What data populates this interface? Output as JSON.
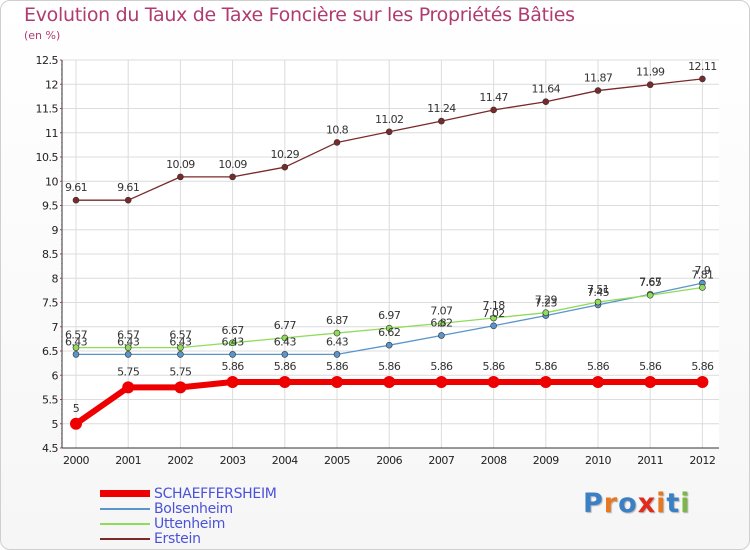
{
  "title": "Evolution du Taux de Taxe Foncière sur les Propriétés Bâties",
  "unit_label": "(en %)",
  "logo": {
    "letters": [
      "P",
      "r",
      "o",
      "x",
      "i",
      "t",
      "i"
    ],
    "colors": [
      "#3b7fc4",
      "#e87722",
      "#3b7fc4",
      "#e02b1c",
      "#e87722",
      "#3b7fc4",
      "#7ab648"
    ]
  },
  "chart_data": {
    "type": "line",
    "title": "Evolution du Taux de Taxe Foncière sur les Propriétés Bâties",
    "ylabel": "(en %)",
    "x": [
      "2000",
      "2001",
      "2002",
      "2003",
      "2004",
      "2005",
      "2006",
      "2007",
      "2008",
      "2009",
      "2010",
      "2011",
      "2012"
    ],
    "ylim": [
      4.5,
      12.5
    ],
    "yticks": [
      "4.5",
      "5",
      "5.5",
      "6",
      "6.5",
      "7",
      "7.5",
      "8",
      "8.5",
      "9",
      "9.5",
      "10",
      "10.5",
      "11",
      "11.5",
      "12",
      "12.5"
    ],
    "grid": true,
    "legend_position": "bottom-left",
    "series": [
      {
        "name": "SCHAEFFERSHEIM",
        "color": "#ee0000",
        "label_color": "#4a52d8",
        "values": [
          5,
          5.75,
          5.75,
          5.86,
          5.86,
          5.86,
          5.86,
          5.86,
          5.86,
          5.86,
          5.86,
          5.86,
          5.86
        ],
        "labels": [
          "5",
          "5.75",
          "5.75",
          "5.86",
          "5.86",
          "5.86",
          "5.86",
          "5.86",
          "5.86",
          "5.86",
          "5.86",
          "5.86",
          "5.86"
        ]
      },
      {
        "name": "Bolsenheim",
        "color": "#5a95cc",
        "label_color": "#4a52d8",
        "values": [
          6.43,
          6.43,
          6.43,
          6.43,
          6.43,
          6.43,
          6.62,
          6.82,
          7.02,
          7.23,
          7.45,
          7.67,
          7.9
        ],
        "labels": [
          "6.43",
          "6.43",
          "6.43",
          "6.43",
          "6.43",
          "6.43",
          "6.62",
          "6.82",
          "7.02",
          "7.23",
          "7.45",
          "7.67",
          "7.9"
        ]
      },
      {
        "name": "Uttenheim",
        "color": "#8fdc5a",
        "label_color": "#4a52d8",
        "values": [
          6.57,
          6.57,
          6.57,
          6.67,
          6.77,
          6.87,
          6.97,
          7.07,
          7.18,
          7.29,
          7.51,
          7.65,
          7.81
        ],
        "labels": [
          "6.57",
          "6.57",
          "6.57",
          "6.67",
          "6.77",
          "6.87",
          "6.97",
          "7.07",
          "7.18",
          "7.29",
          "7.51",
          "7.65",
          "7.81"
        ]
      },
      {
        "name": "Erstein",
        "color": "#7a2a2a",
        "label_color": "#4a52d8",
        "values": [
          9.61,
          9.61,
          10.09,
          10.09,
          10.29,
          10.8,
          11.02,
          11.24,
          11.47,
          11.64,
          11.87,
          11.99,
          12.11
        ],
        "labels": [
          "9.61",
          "9.61",
          "10.09",
          "10.09",
          "10.29",
          "10.8",
          "11.02",
          "11.24",
          "11.47",
          "11.64",
          "11.87",
          "11.99",
          "12.11"
        ]
      }
    ]
  }
}
